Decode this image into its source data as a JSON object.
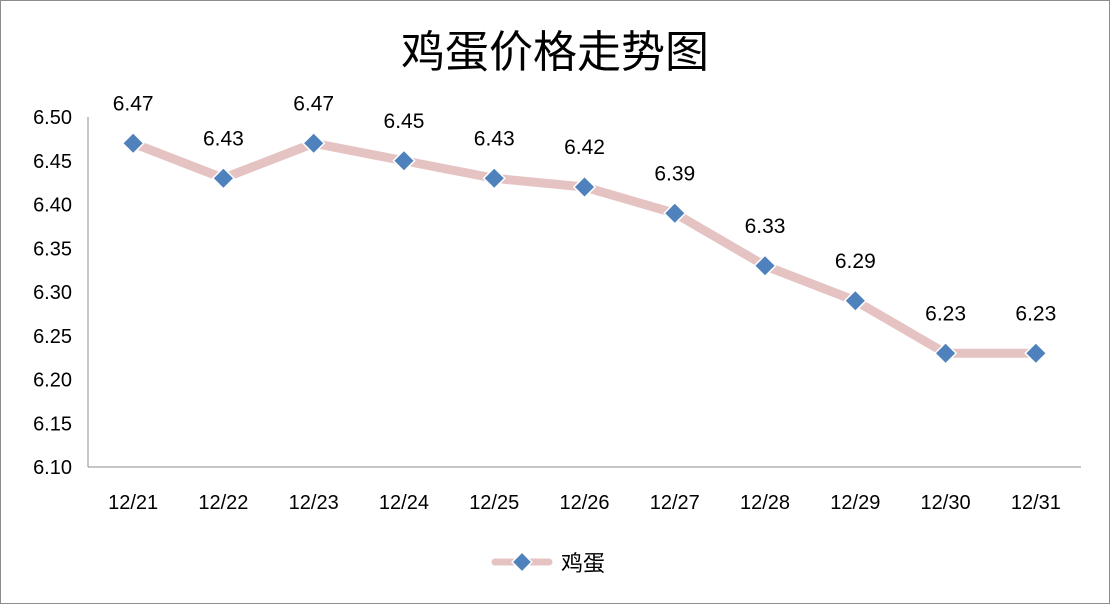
{
  "chart_data": {
    "type": "line",
    "title": "鸡蛋价格走势图",
    "xlabel": "",
    "ylabel": "",
    "categories": [
      "12/21",
      "12/22",
      "12/23",
      "12/24",
      "12/25",
      "12/26",
      "12/27",
      "12/28",
      "12/29",
      "12/30",
      "12/31"
    ],
    "series": [
      {
        "name": "鸡蛋",
        "values": [
          6.47,
          6.43,
          6.47,
          6.45,
          6.43,
          6.42,
          6.39,
          6.33,
          6.29,
          6.23,
          6.23
        ]
      }
    ],
    "data_labels": [
      "6.47",
      "6.43",
      "6.47",
      "6.45",
      "6.43",
      "6.42",
      "6.39",
      "6.33",
      "6.29",
      "6.23",
      "6.23"
    ],
    "yticks": [
      "6.50",
      "6.45",
      "6.40",
      "6.35",
      "6.30",
      "6.25",
      "6.20",
      "6.15",
      "6.10"
    ],
    "ylim": [
      6.1,
      6.5
    ],
    "grid": false,
    "legend": "bottom",
    "colors": {
      "line": "#e6c3c3",
      "marker": "#4f81bd",
      "marker_stroke": "#ffffff",
      "axis": "#8c8c8c"
    }
  }
}
